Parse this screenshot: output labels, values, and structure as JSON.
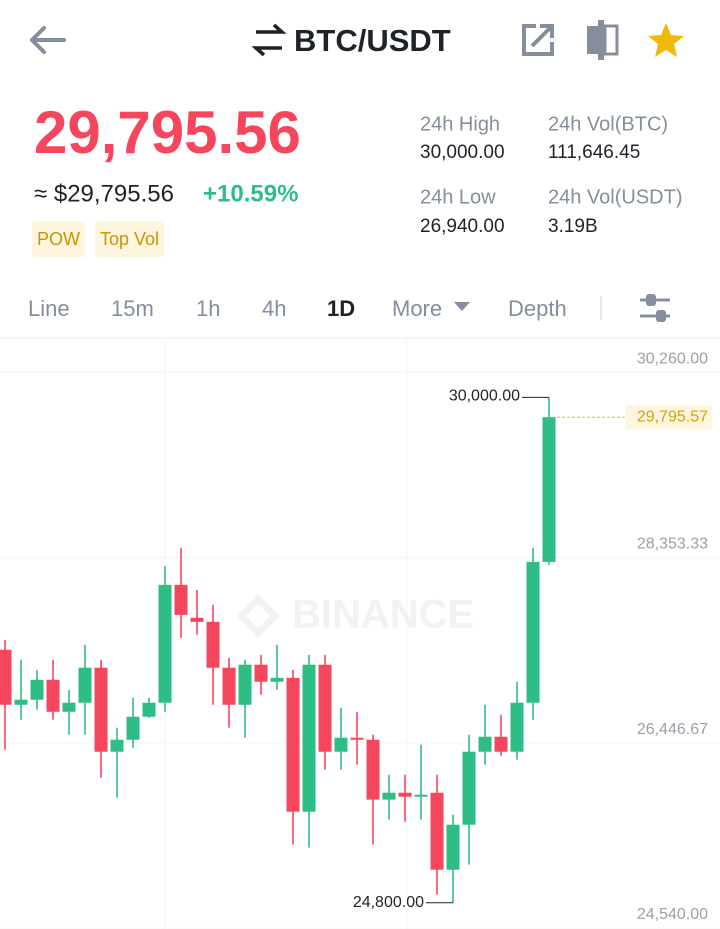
{
  "header": {
    "title": "BTC/USDT"
  },
  "price": {
    "last": "29,795.56",
    "approx": "≈ $29,795.56",
    "change": "+10.59%",
    "tags": [
      "POW",
      "Top Vol"
    ]
  },
  "stats": [
    {
      "label": "24h High",
      "value": "30,000.00"
    },
    {
      "label": "24h Vol(BTC)",
      "value": "111,646.45"
    },
    {
      "label": "24h Low",
      "value": "26,940.00"
    },
    {
      "label": "24h Vol(USDT)",
      "value": "3.19B"
    }
  ],
  "tabs": [
    "Line",
    "15m",
    "1h",
    "4h",
    "1D",
    "More",
    "Depth"
  ],
  "active_tab": 4,
  "chart_data": {
    "type": "candlestick",
    "up_color": "#2ebd85",
    "down_color": "#f6465d",
    "open": [
      27403,
      26837,
      26889,
      27094,
      26765,
      26858,
      27218,
      26354,
      26477,
      26714,
      26858,
      28071,
      27732,
      27690,
      27218,
      26837,
      27249,
      27074,
      27114,
      25737,
      27249,
      26354,
      26498,
      26477,
      25861,
      25932,
      25891,
      25932,
      25140,
      25603,
      26354,
      26508,
      26354,
      26858,
      28307
    ],
    "high": [
      27505,
      27300,
      27197,
      27300,
      26991,
      27454,
      27300,
      26601,
      26909,
      26909,
      28266,
      28451,
      28019,
      27865,
      27320,
      27300,
      27351,
      27454,
      27197,
      27351,
      27351,
      26806,
      26765,
      26529,
      26117,
      26117,
      26426,
      26117,
      25706,
      26529,
      26837,
      26734,
      27074,
      28451,
      30000
    ],
    "low": [
      26375,
      26683,
      26786,
      26683,
      26529,
      26529,
      26087,
      25881,
      26395,
      26703,
      26765,
      27526,
      27557,
      26837,
      26601,
      26498,
      26940,
      26991,
      25398,
      25367,
      26169,
      26169,
      26220,
      25398,
      25655,
      25634,
      25655,
      24884,
      24800,
      25192,
      26220,
      26313,
      26272,
      26683,
      28276
    ],
    "close": [
      26837,
      26889,
      27094,
      26765,
      26858,
      27218,
      26354,
      26477,
      26714,
      26858,
      28071,
      27762,
      27690,
      27218,
      26837,
      27249,
      27074,
      27114,
      25737,
      27249,
      26354,
      26498,
      26477,
      25861,
      25932,
      25891,
      25912,
      25140,
      25603,
      26354,
      26508,
      26354,
      26858,
      28307,
      29795.57
    ],
    "ylim": [
      24530,
      30590
    ],
    "yticks": [
      {
        "value": 30260,
        "label": "30,260.00"
      },
      {
        "value": 28353.33,
        "label": "28,353.33"
      },
      {
        "value": 26446.67,
        "label": "26,446.67"
      },
      {
        "value": 24540,
        "label": "24,540.00"
      }
    ],
    "grid": true,
    "high_label": {
      "value": 30000,
      "label": "30,000.00"
    },
    "low_label": {
      "value": 24800,
      "label": "24,800.00"
    },
    "last_price": {
      "value": 29795.57,
      "label": "29,795.57"
    },
    "watermark": "BINANCE"
  }
}
